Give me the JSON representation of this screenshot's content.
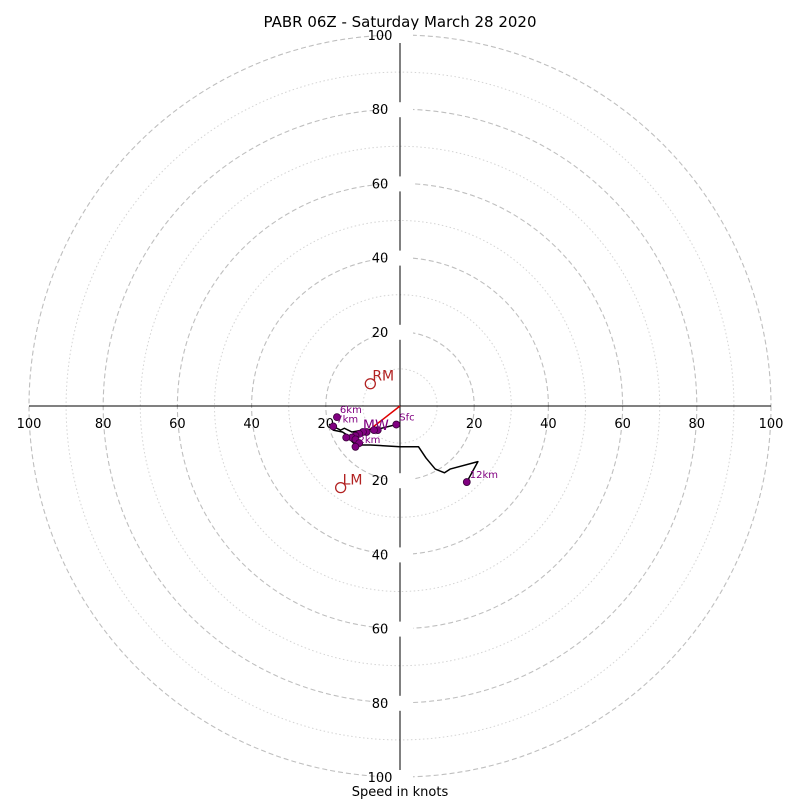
{
  "chart_data": {
    "type": "hodograph",
    "title": "PABR 06Z - Saturday March 28 2020",
    "xlabel": "Speed in knots",
    "range": [
      -100,
      100
    ],
    "ring_major": [
      20,
      40,
      60,
      80,
      100
    ],
    "ring_minor": [
      10,
      30,
      50,
      70,
      90
    ],
    "tick_values": [
      20,
      40,
      60,
      80,
      100
    ],
    "hodograph_line": [
      [
        -1,
        -5
      ],
      [
        -5,
        -6
      ],
      [
        -10,
        -6.5
      ],
      [
        -13,
        -7
      ],
      [
        -15,
        -6
      ],
      [
        -16,
        -6.5
      ],
      [
        -19,
        -5
      ],
      [
        -18,
        -6.5
      ],
      [
        -15.5,
        -7
      ],
      [
        -14,
        -8
      ],
      [
        -13.5,
        -9
      ],
      [
        -12.5,
        -10
      ],
      [
        -11,
        -10.5
      ],
      [
        -8,
        -10.5
      ],
      [
        0,
        -11
      ],
      [
        5,
        -11
      ],
      [
        7,
        -14
      ],
      [
        9.5,
        -17
      ],
      [
        12,
        -18
      ],
      [
        13.5,
        -17
      ],
      [
        21,
        -15
      ],
      [
        18,
        -20.5
      ]
    ],
    "labeled_points": [
      {
        "label": "Sfc",
        "u": -1,
        "v": -5
      },
      {
        "label": "6km",
        "u": -17,
        "v": -3
      },
      {
        "label": "7km",
        "u": -18,
        "v": -5.5
      },
      {
        "label": "2km",
        "u": -12,
        "v": -11
      },
      {
        "label": "12km",
        "u": 18,
        "v": -20.5
      }
    ],
    "unlabeled_points": [
      [
        -6,
        -6.5
      ],
      [
        -7,
        -6.5
      ],
      [
        -9,
        -7
      ],
      [
        -10,
        -7
      ],
      [
        -11,
        -7.5
      ],
      [
        -12,
        -8
      ],
      [
        -13,
        -8.5
      ],
      [
        -14.5,
        -8.5
      ],
      [
        -12,
        -9
      ],
      [
        -11,
        -10
      ]
    ],
    "mean_wind": {
      "label": "MW",
      "u": -10,
      "v": -6.5
    },
    "storm_motions": [
      {
        "label": "RM",
        "u": -8,
        "v": 6
      },
      {
        "label": "LM",
        "u": -16,
        "v": -22
      }
    ],
    "shear_vector": [
      [
        0,
        0
      ],
      [
        -9,
        -7
      ]
    ],
    "colors": {
      "ring": "#bfbfbf",
      "axis": "#000000",
      "hodograph": "#000000",
      "points": "#800080",
      "storm_motion": "#b22222",
      "shear_vector": "#e00000"
    }
  }
}
